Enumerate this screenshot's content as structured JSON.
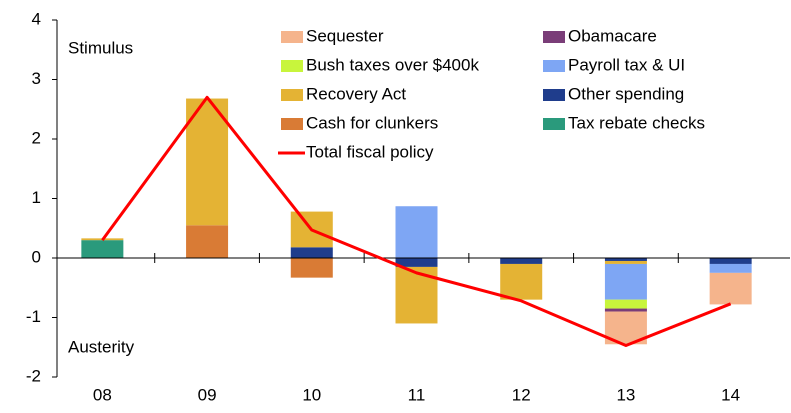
{
  "chart_data": {
    "type": "bar",
    "annotations": [
      "Stimulus",
      "Austerity"
    ],
    "categories": [
      "08",
      "09",
      "10",
      "11",
      "12",
      "13",
      "14"
    ],
    "series": [
      {
        "name": "Sequester",
        "color": "#f5b48c",
        "values": [
          null,
          null,
          null,
          null,
          null,
          -0.55,
          -0.53
        ]
      },
      {
        "name": "Obamacare",
        "color": "#7a3d78",
        "values": [
          null,
          null,
          null,
          null,
          null,
          -0.05,
          null
        ]
      },
      {
        "name": "Bush taxes over $400k",
        "color": "#c8f53c",
        "values": [
          null,
          null,
          null,
          null,
          null,
          -0.15,
          null
        ]
      },
      {
        "name": "Payroll tax & UI",
        "color": "#7ea6f4",
        "values": [
          null,
          null,
          null,
          0.87,
          null,
          -0.6,
          -0.15
        ]
      },
      {
        "name": "Recovery Act",
        "color": "#e4b334",
        "values": [
          0.03,
          2.13,
          0.6,
          -0.95,
          -0.6,
          -0.05,
          null
        ]
      },
      {
        "name": "Other spending",
        "color": "#1f3d8c",
        "values": [
          null,
          null,
          0.18,
          -0.15,
          -0.1,
          -0.05,
          -0.1
        ]
      },
      {
        "name": "Cash for clunkers",
        "color": "#d97b35",
        "values": [
          null,
          0.55,
          -0.33,
          null,
          null,
          null,
          null
        ]
      },
      {
        "name": "Tax rebate checks",
        "color": "#2a9a7c",
        "values": [
          0.3,
          null,
          null,
          null,
          null,
          null,
          null
        ]
      },
      {
        "name": "Total fiscal policy",
        "type": "line",
        "color": "#ff0000",
        "values": [
          0.3,
          2.7,
          0.47,
          -0.25,
          -0.72,
          -1.47,
          -0.77
        ]
      }
    ],
    "ylim": [
      -2,
      4
    ],
    "yticks": [
      -2,
      -1,
      0,
      1,
      2,
      3,
      4
    ],
    "grid": false,
    "legend": "top"
  }
}
